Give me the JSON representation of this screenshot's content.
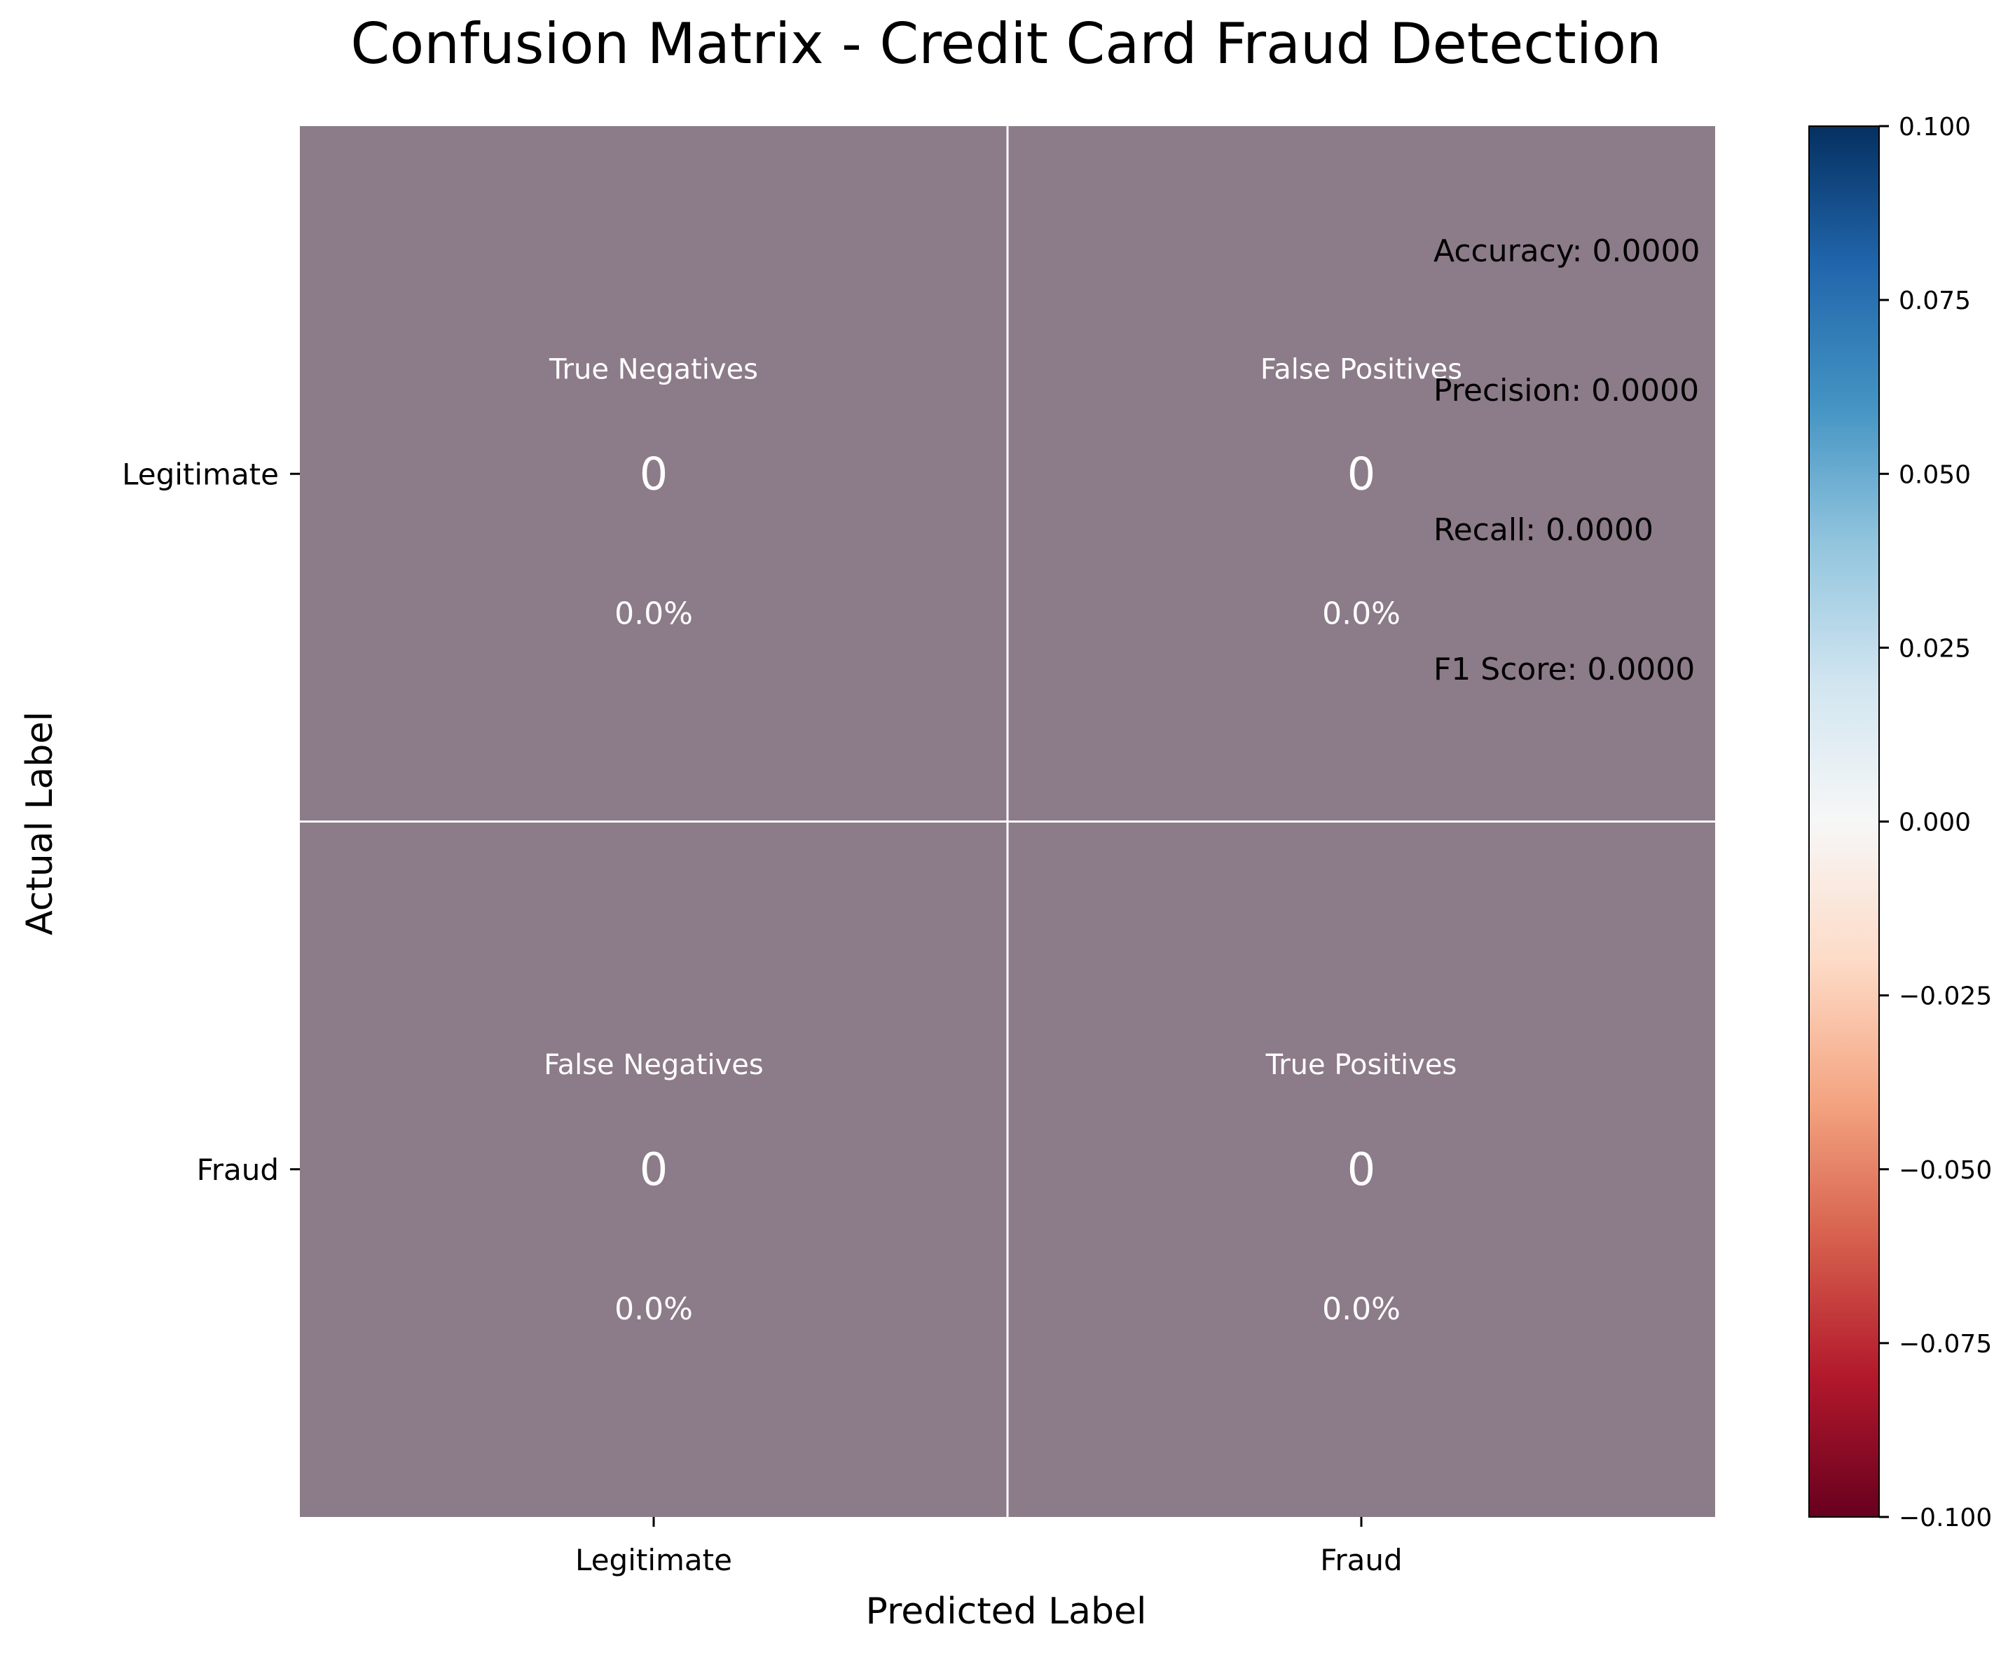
{
  "chart_data": {
    "type": "heatmap",
    "title": "Confusion Matrix - Credit Card Fraud Detection",
    "xlabel": "Predicted Label",
    "ylabel": "Actual Label",
    "x_categories": [
      "Legitimate",
      "Fraud"
    ],
    "y_categories": [
      "Legitimate",
      "Fraud"
    ],
    "cells": [
      {
        "row": 0,
        "col": 0,
        "label": "True Negatives",
        "value": 0,
        "percent": "0.0%"
      },
      {
        "row": 0,
        "col": 1,
        "label": "False Positives",
        "value": 0,
        "percent": "0.0%"
      },
      {
        "row": 1,
        "col": 0,
        "label": "False Negatives",
        "value": 0,
        "percent": "0.0%"
      },
      {
        "row": 1,
        "col": 1,
        "label": "True Positives",
        "value": 0,
        "percent": "0.0%"
      }
    ],
    "metrics": [
      "Accuracy: 0.0000",
      "Precision: 0.0000",
      "Recall: 0.0000",
      "F1 Score: 0.0000"
    ],
    "colorbar": {
      "range": [
        -0.1,
        0.1
      ],
      "ticks": [
        0.1,
        0.075,
        0.05,
        0.025,
        0.0,
        -0.025,
        -0.05,
        -0.075,
        -0.1
      ],
      "tick_labels": [
        "0.100",
        "0.075",
        "0.050",
        "0.025",
        "0.000",
        "−0.025",
        "−0.050",
        "−0.075",
        "−0.100"
      ],
      "colormap": "RdBu",
      "stops": [
        "#67001f",
        "#b2182b",
        "#d6604d",
        "#f4a582",
        "#fddbc7",
        "#f7f7f7",
        "#d1e5f0",
        "#92c5de",
        "#4393c3",
        "#2166ac",
        "#053061"
      ]
    },
    "cell_color": "#8c7b88",
    "grid_line_color": "#ffffff",
    "text_color": "#ffffff",
    "metrics_color": "#000000"
  }
}
